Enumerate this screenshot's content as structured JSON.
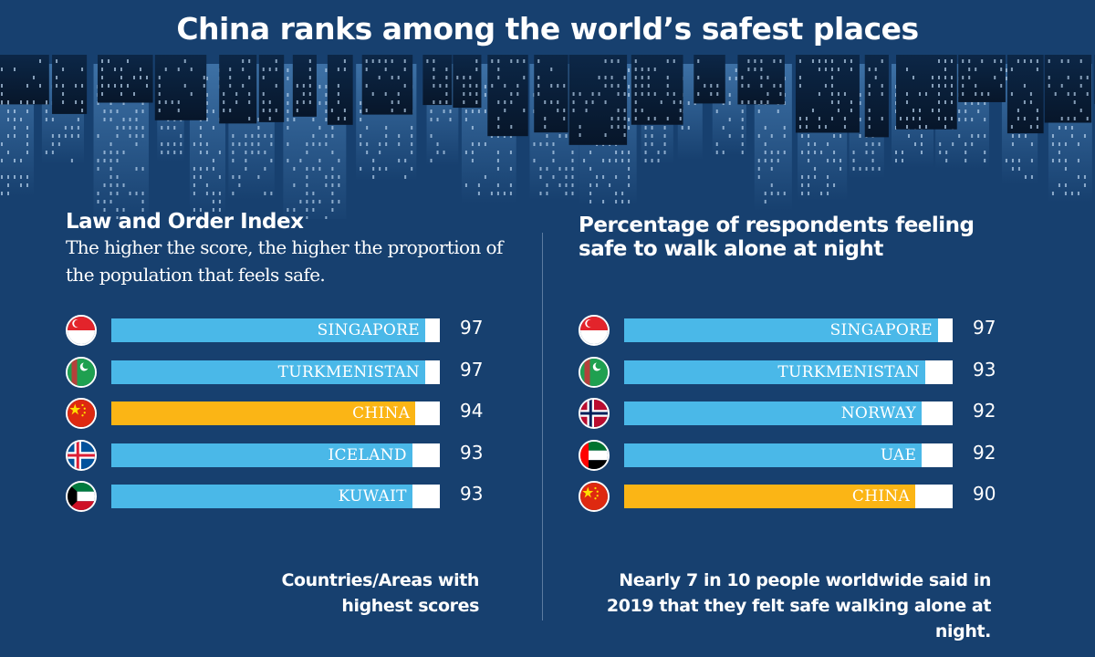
{
  "title": "China ranks among the world’s safest places",
  "colors": {
    "background": "#17406f",
    "bar": "#4ab8e8",
    "highlight": "#fbb515",
    "track": "#ffffff"
  },
  "chart_data": [
    {
      "type": "bar",
      "orientation": "horizontal",
      "title": "Law and Order Index",
      "subtitle": "The higher the score, the higher the proportion of the population that feels safe.",
      "categories": [
        "SINGAPORE",
        "TURKMENISTAN",
        "CHINA",
        "ICELAND",
        "KUWAIT"
      ],
      "flags": [
        "singapore-flag",
        "turkmenistan-flag",
        "china-flag",
        "iceland-flag",
        "kuwait-flag"
      ],
      "values": [
        97,
        97,
        94,
        93,
        93
      ],
      "highlight": "CHINA",
      "xlim": [
        0,
        100
      ],
      "footnote": "Countries/Areas with highest scores"
    },
    {
      "type": "bar",
      "orientation": "horizontal",
      "title": "Percentage of respondents feeling safe to walk alone at night",
      "categories": [
        "SINGAPORE",
        "TURKMENISTAN",
        "NORWAY",
        "UAE",
        "CHINA"
      ],
      "flags": [
        "singapore-flag",
        "turkmenistan-flag",
        "norway-flag",
        "uae-flag",
        "china-flag"
      ],
      "values": [
        97,
        93,
        92,
        92,
        90
      ],
      "highlight": "CHINA",
      "xlim": [
        0,
        100
      ],
      "footnote": "Nearly 7 in 10 people worldwide said in 2019 that they felt safe walking alone at night."
    }
  ]
}
